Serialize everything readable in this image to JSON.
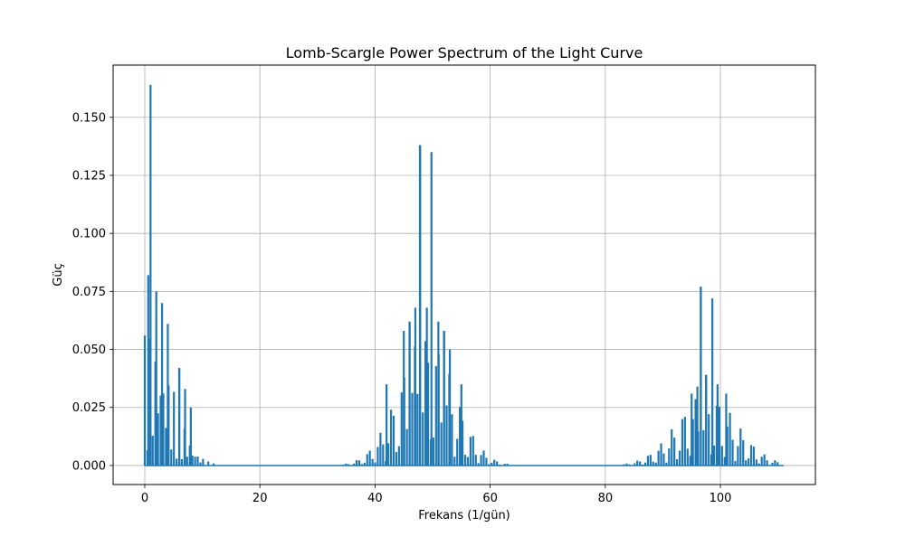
{
  "chart_data": {
    "type": "line",
    "title": "Lomb-Scargle Power Spectrum of the Light Curve",
    "xlabel": "Frekans (1/gün)",
    "ylabel": "Güç",
    "xlim": [
      -5.5,
      116.5
    ],
    "ylim": [
      -0.0082,
      0.1725
    ],
    "xticks": [
      0,
      20,
      40,
      60,
      80,
      100
    ],
    "xtick_labels": [
      "0",
      "20",
      "40",
      "60",
      "80",
      "100"
    ],
    "yticks": [
      0.0,
      0.025,
      0.05,
      0.075,
      0.1,
      0.125,
      0.15
    ],
    "ytick_labels": [
      "0.000",
      "0.025",
      "0.050",
      "0.075",
      "0.100",
      "0.125",
      "0.150"
    ],
    "grid": true,
    "color": "#1f77b4",
    "series": [
      {
        "x_start": 0.0,
        "x_end": 111.0,
        "approx_line_spacing": 0.46,
        "peaks": [
          {
            "x": 0.6,
            "y": 0.082
          },
          {
            "x": 1.0,
            "y": 0.164
          },
          {
            "x": 2.0,
            "y": 0.075
          },
          {
            "x": 3.0,
            "y": 0.07
          },
          {
            "x": 4.0,
            "y": 0.061
          },
          {
            "x": 6.0,
            "y": 0.042
          },
          {
            "x": 7.0,
            "y": 0.033
          },
          {
            "x": 8.0,
            "y": 0.025
          },
          {
            "x": 42.0,
            "y": 0.035
          },
          {
            "x": 45.0,
            "y": 0.058
          },
          {
            "x": 46.0,
            "y": 0.062
          },
          {
            "x": 47.0,
            "y": 0.068
          },
          {
            "x": 47.8,
            "y": 0.138
          },
          {
            "x": 49.0,
            "y": 0.068
          },
          {
            "x": 49.8,
            "y": 0.135
          },
          {
            "x": 51.0,
            "y": 0.062
          },
          {
            "x": 52.0,
            "y": 0.058
          },
          {
            "x": 53.0,
            "y": 0.05
          },
          {
            "x": 55.0,
            "y": 0.035
          },
          {
            "x": 95.0,
            "y": 0.031
          },
          {
            "x": 96.0,
            "y": 0.034
          },
          {
            "x": 96.6,
            "y": 0.077
          },
          {
            "x": 97.5,
            "y": 0.039
          },
          {
            "x": 98.6,
            "y": 0.072
          },
          {
            "x": 99.5,
            "y": 0.035
          },
          {
            "x": 101.0,
            "y": 0.031
          }
        ],
        "envelopes": [
          {
            "center": 1.0,
            "amplitude": 0.058,
            "sigma": 3.8,
            "period": 1.0
          },
          {
            "center": 48.9,
            "amplitude": 0.056,
            "sigma": 4.8,
            "period": 2.0
          },
          {
            "center": 97.6,
            "amplitude": 0.031,
            "sigma": 5.2,
            "period": 2.0
          }
        ]
      }
    ]
  }
}
